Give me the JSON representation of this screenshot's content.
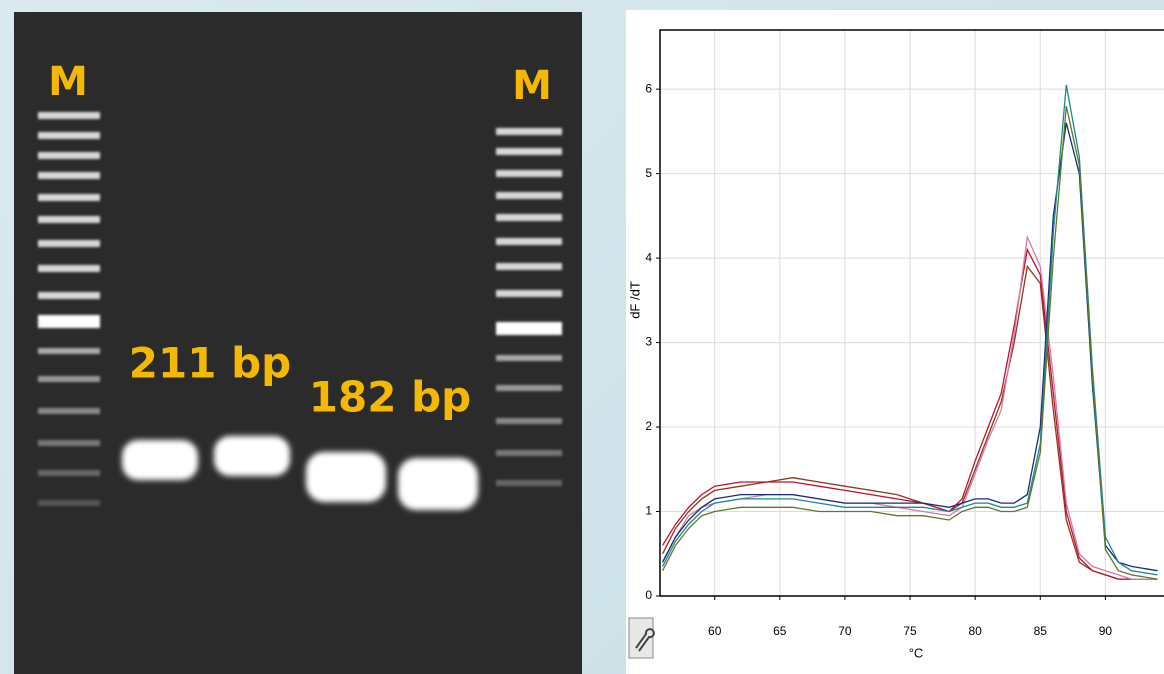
{
  "gel": {
    "labels": [
      "M",
      "M",
      "211 bp",
      "182 bp"
    ]
  },
  "chart_data": {
    "type": "line",
    "ylabel": "dF /dT",
    "xlabel": "°C",
    "x": [
      56,
      57,
      58,
      59,
      60,
      62,
      64,
      66,
      68,
      70,
      72,
      74,
      76,
      78,
      79,
      80,
      81,
      82,
      83,
      84,
      85,
      86,
      87,
      88,
      89,
      90,
      91,
      92,
      94
    ],
    "xlim": [
      55.8,
      94.5
    ],
    "ylim": [
      0,
      6.7
    ],
    "xticks": [
      60,
      65,
      70,
      75,
      80,
      85,
      90
    ],
    "yticks": [
      0,
      1,
      2,
      3,
      4,
      5,
      6
    ],
    "grid": true,
    "series": [
      {
        "color": "#8b3a1a",
        "values": [
          0.5,
          0.8,
          1.0,
          1.15,
          1.25,
          1.3,
          1.35,
          1.4,
          1.35,
          1.3,
          1.25,
          1.2,
          1.1,
          1.0,
          1.1,
          1.5,
          1.9,
          2.3,
          3.0,
          3.9,
          3.7,
          2.2,
          0.9,
          0.4,
          0.3,
          0.25,
          0.2,
          0.2,
          0.2
        ]
      },
      {
        "color": "#c01030",
        "values": [
          0.6,
          0.85,
          1.05,
          1.2,
          1.3,
          1.35,
          1.35,
          1.35,
          1.3,
          1.25,
          1.2,
          1.15,
          1.1,
          1.0,
          1.15,
          1.6,
          2.0,
          2.4,
          3.2,
          4.1,
          3.8,
          2.4,
          1.0,
          0.45,
          0.3,
          0.25,
          0.2,
          0.2,
          0.2
        ]
      },
      {
        "color": "#d47aa8",
        "values": [
          0.4,
          0.7,
          0.95,
          1.05,
          1.1,
          1.15,
          1.2,
          1.2,
          1.15,
          1.1,
          1.1,
          1.05,
          1.0,
          0.95,
          1.05,
          1.45,
          1.85,
          2.2,
          3.1,
          4.25,
          3.9,
          2.6,
          1.1,
          0.5,
          0.35,
          0.3,
          0.25,
          0.2,
          0.2
        ]
      },
      {
        "color": "#1a2a80",
        "values": [
          0.4,
          0.7,
          0.9,
          1.05,
          1.15,
          1.2,
          1.2,
          1.2,
          1.15,
          1.1,
          1.1,
          1.1,
          1.1,
          1.05,
          1.1,
          1.15,
          1.15,
          1.1,
          1.1,
          1.2,
          2.0,
          4.5,
          5.6,
          5.0,
          2.5,
          0.6,
          0.4,
          0.35,
          0.3
        ]
      },
      {
        "color": "#1a8a8a",
        "values": [
          0.35,
          0.65,
          0.85,
          1.0,
          1.1,
          1.15,
          1.15,
          1.15,
          1.1,
          1.05,
          1.05,
          1.05,
          1.05,
          1.0,
          1.05,
          1.1,
          1.1,
          1.05,
          1.05,
          1.1,
          1.8,
          4.3,
          6.05,
          5.2,
          2.7,
          0.7,
          0.4,
          0.3,
          0.25
        ]
      },
      {
        "color": "#5a7a2a",
        "values": [
          0.3,
          0.6,
          0.8,
          0.95,
          1.0,
          1.05,
          1.05,
          1.05,
          1.0,
          1.0,
          1.0,
          0.95,
          0.95,
          0.9,
          1.0,
          1.05,
          1.05,
          1.0,
          1.0,
          1.05,
          1.7,
          4.0,
          5.8,
          5.1,
          2.6,
          0.55,
          0.3,
          0.25,
          0.2
        ]
      }
    ]
  }
}
